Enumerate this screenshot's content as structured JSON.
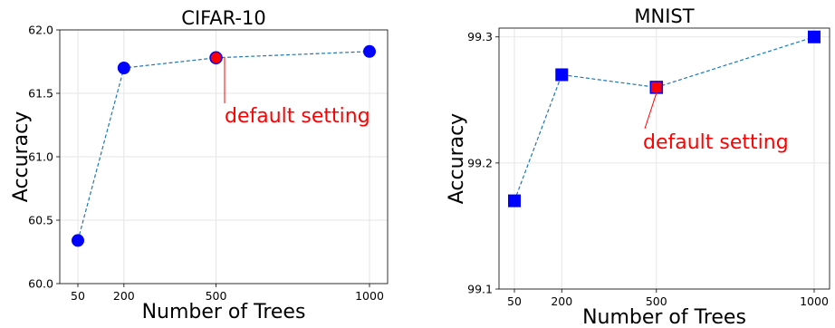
{
  "chart_data": [
    {
      "type": "line",
      "title": "CIFAR-10",
      "xlabel": "Number of Trees",
      "ylabel": "Accuracy",
      "x": [
        50,
        200,
        500,
        1000
      ],
      "x_tick_labels": [
        "50",
        "200",
        "500",
        "1000"
      ],
      "y_tick_labels": [
        "60.0",
        "60.5",
        "61.0",
        "61.5",
        "62.0"
      ],
      "ylim": [
        60.0,
        62.0
      ],
      "series": [
        {
          "values": [
            60.34,
            61.7,
            61.78,
            61.83
          ]
        }
      ],
      "marker": "circle",
      "highlight_x": 500,
      "annotation": "default setting",
      "grid": true
    },
    {
      "type": "line",
      "title": "MNIST",
      "xlabel": "Number of Trees",
      "ylabel": "Accuracy",
      "x": [
        50,
        200,
        500,
        1000
      ],
      "x_tick_labels": [
        "50",
        "200",
        "500",
        "1000"
      ],
      "y_tick_labels": [
        "99.1",
        "99.2",
        "99.3"
      ],
      "ylim": [
        99.1,
        99.307
      ],
      "series": [
        {
          "values": [
            99.17,
            99.27,
            99.26,
            99.3
          ]
        }
      ],
      "marker": "square",
      "highlight_x": 500,
      "annotation": "default setting",
      "grid": true
    }
  ],
  "colors": {
    "marker": "#0000ff",
    "highlight": "#ff0000",
    "line": "#1f77b4",
    "annotation": "#ff0000",
    "grid": "#e6e6e6"
  }
}
